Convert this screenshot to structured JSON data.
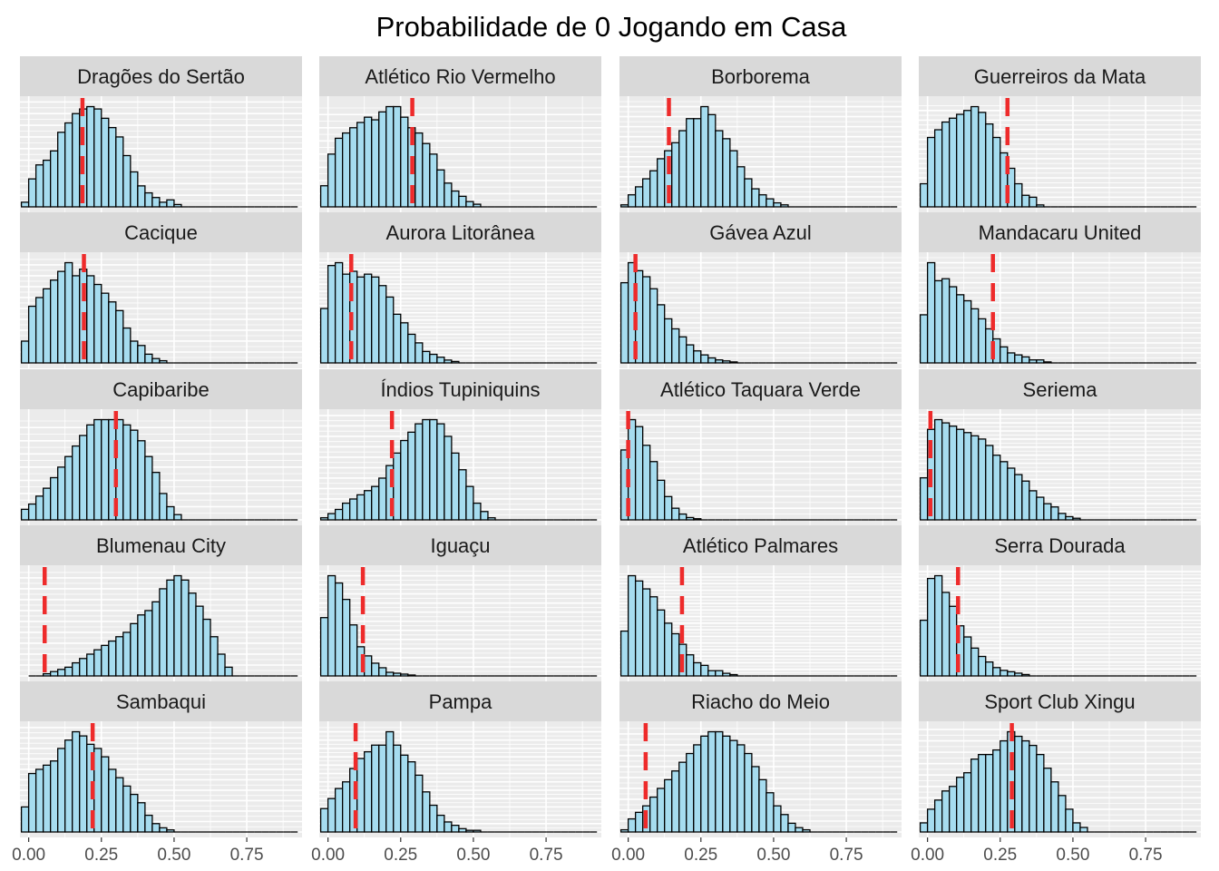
{
  "chart_data": {
    "type": "bar",
    "title": "Probabilidade de 0 Jogando em Casa",
    "xlabel": "",
    "ylabel": "",
    "xlim": [
      -0.03,
      0.94
    ],
    "x_ticks": [
      0,
      0.25,
      0.5,
      0.75
    ],
    "x_tick_labels": [
      "0.00",
      "0.25",
      "0.50",
      "0.75"
    ],
    "bin_start": -0.025,
    "bin_width": 0.025,
    "grid": true,
    "bar_fill": "#a6dcef",
    "bar_outline": "#000000",
    "reference_line_color": "#ee2b2b",
    "panel_bg": "#ebebeb",
    "strip_bg": "#d9d9d9",
    "facets": [
      {
        "name": "Dragões do Sertão",
        "ref": 0.185,
        "counts": [
          2,
          12,
          18,
          20,
          24,
          32,
          36,
          40,
          42,
          43,
          42,
          38,
          34,
          30,
          22,
          15,
          9,
          6,
          4,
          2,
          3,
          1,
          0,
          0,
          0,
          0,
          0,
          0,
          0,
          0,
          0,
          0,
          0,
          0,
          0,
          0,
          0,
          0
        ]
      },
      {
        "name": "Atlético Rio Vermelho",
        "ref": 0.29,
        "counts": [
          8,
          20,
          26,
          28,
          30,
          32,
          34,
          33,
          36,
          38,
          38,
          34,
          30,
          28,
          24,
          20,
          14,
          9,
          6,
          4,
          2,
          1,
          0,
          0,
          0,
          0,
          0,
          0,
          0,
          0,
          0,
          0,
          0,
          0,
          0,
          0,
          0,
          0
        ]
      },
      {
        "name": "Borborema",
        "ref": 0.14,
        "counts": [
          1,
          6,
          10,
          14,
          18,
          24,
          28,
          32,
          38,
          44,
          44,
          50,
          46,
          38,
          34,
          28,
          20,
          14,
          9,
          6,
          4,
          2,
          1,
          0,
          0,
          0,
          0,
          0,
          0,
          0,
          0,
          0,
          0,
          0,
          0,
          0,
          0,
          0
        ]
      },
      {
        "name": "Guerreiros da Mata",
        "ref": 0.275,
        "counts": [
          12,
          36,
          40,
          44,
          46,
          48,
          50,
          52,
          49,
          43,
          36,
          28,
          20,
          12,
          6,
          5,
          1,
          0,
          0,
          0,
          0,
          0,
          0,
          0,
          0,
          0,
          0,
          0,
          0,
          0,
          0,
          0,
          0,
          0,
          0,
          0,
          0,
          0
        ]
      },
      {
        "name": "Cacique",
        "ref": 0.19,
        "counts": [
          10,
          26,
          30,
          34,
          38,
          42,
          46,
          40,
          43,
          40,
          36,
          32,
          28,
          24,
          16,
          10,
          8,
          4,
          2,
          1,
          0,
          0,
          0,
          0,
          0,
          0,
          0,
          0,
          0,
          0,
          0,
          0,
          0,
          0,
          0,
          0,
          0,
          0
        ]
      },
      {
        "name": "Aurora Litorânea",
        "ref": 0.08,
        "counts": [
          38,
          68,
          70,
          62,
          64,
          60,
          62,
          60,
          54,
          46,
          34,
          28,
          20,
          14,
          8,
          6,
          4,
          2,
          1,
          0,
          0,
          0,
          0,
          0,
          0,
          0,
          0,
          0,
          0,
          0,
          0,
          0,
          0,
          0,
          0,
          0,
          0,
          0
        ]
      },
      {
        "name": "Gávea Azul",
        "ref": 0.025,
        "counts": [
          80,
          100,
          92,
          86,
          74,
          58,
          44,
          34,
          26,
          18,
          12,
          8,
          5,
          3,
          2,
          1,
          0,
          0,
          0,
          0,
          0,
          0,
          0,
          0,
          0,
          0,
          0,
          0,
          0,
          0,
          0,
          0,
          0,
          0,
          0,
          0,
          0,
          0
        ]
      },
      {
        "name": "Mandacaru United",
        "ref": 0.225,
        "counts": [
          48,
          100,
          82,
          84,
          76,
          68,
          62,
          54,
          44,
          34,
          24,
          16,
          10,
          8,
          6,
          3,
          3,
          1,
          0,
          0,
          0,
          0,
          0,
          0,
          0,
          0,
          0,
          0,
          0,
          0,
          0,
          0,
          0,
          0,
          0,
          0,
          0,
          0
        ]
      },
      {
        "name": "Capibaribe",
        "ref": 0.3,
        "counts": [
          4,
          6,
          9,
          12,
          16,
          20,
          24,
          28,
          32,
          36,
          38,
          38,
          38,
          38,
          36,
          34,
          30,
          24,
          18,
          10,
          5,
          2,
          0,
          0,
          0,
          0,
          0,
          0,
          0,
          0,
          0,
          0,
          0,
          0,
          0,
          0,
          0,
          0
        ]
      },
      {
        "name": "Índios Tupiniquins",
        "ref": 0.22,
        "counts": [
          1,
          3,
          5,
          8,
          10,
          12,
          14,
          16,
          20,
          26,
          32,
          38,
          42,
          46,
          48,
          48,
          46,
          40,
          32,
          24,
          16,
          8,
          4,
          1,
          0,
          0,
          0,
          0,
          0,
          0,
          0,
          0,
          0,
          0,
          0,
          0,
          0,
          0
        ]
      },
      {
        "name": "Atlético Taquara Verde",
        "ref": 0.0,
        "counts": [
          60,
          86,
          80,
          64,
          50,
          34,
          20,
          10,
          5,
          2,
          1,
          0,
          0,
          0,
          0,
          0,
          0,
          0,
          0,
          0,
          0,
          0,
          0,
          0,
          0,
          0,
          0,
          0,
          0,
          0,
          0,
          0,
          0,
          0,
          0,
          0,
          0,
          0
        ]
      },
      {
        "name": "Seriema",
        "ref": 0.01,
        "counts": [
          26,
          56,
          62,
          60,
          58,
          56,
          54,
          52,
          50,
          46,
          40,
          36,
          32,
          28,
          24,
          18,
          14,
          10,
          8,
          4,
          2,
          1,
          0,
          0,
          0,
          0,
          0,
          0,
          0,
          0,
          0,
          0,
          0,
          0,
          0,
          0,
          0,
          0
        ]
      },
      {
        "name": "Blumenau City",
        "ref": 0.055,
        "counts": [
          0,
          0,
          0,
          1,
          2,
          3,
          4,
          6,
          8,
          10,
          12,
          14,
          16,
          18,
          20,
          24,
          28,
          30,
          34,
          40,
          44,
          46,
          44,
          38,
          32,
          26,
          18,
          10,
          4,
          0,
          0,
          0,
          0,
          0,
          0,
          0,
          0,
          0
        ]
      },
      {
        "name": "Iguaçu",
        "ref": 0.12,
        "counts": [
          64,
          110,
          102,
          84,
          56,
          32,
          22,
          14,
          9,
          4,
          3,
          2,
          1,
          0,
          0,
          0,
          0,
          0,
          0,
          0,
          0,
          0,
          0,
          0,
          0,
          0,
          0,
          0,
          0,
          0,
          0,
          0,
          0,
          0,
          0,
          0,
          0,
          0
        ]
      },
      {
        "name": "Atlético Palmares",
        "ref": 0.185,
        "counts": [
          34,
          76,
          72,
          66,
          60,
          50,
          40,
          32,
          24,
          16,
          10,
          8,
          4,
          4,
          2,
          1,
          0,
          0,
          0,
          0,
          0,
          0,
          0,
          0,
          0,
          0,
          0,
          0,
          0,
          0,
          0,
          0,
          0,
          0,
          0,
          0,
          0,
          0
        ]
      },
      {
        "name": "Serra Dourada",
        "ref": 0.105,
        "counts": [
          40,
          70,
          72,
          60,
          50,
          36,
          28,
          20,
          14,
          10,
          6,
          4,
          3,
          2,
          1,
          0,
          0,
          0,
          0,
          0,
          0,
          0,
          0,
          0,
          0,
          0,
          0,
          0,
          0,
          0,
          0,
          0,
          0,
          0,
          0,
          0,
          0,
          0
        ]
      },
      {
        "name": "Sambaqui",
        "ref": 0.22,
        "counts": [
          12,
          28,
          30,
          32,
          34,
          40,
          44,
          48,
          46,
          42,
          40,
          36,
          30,
          26,
          22,
          18,
          14,
          8,
          4,
          2,
          1,
          0,
          0,
          0,
          0,
          0,
          0,
          0,
          0,
          0,
          0,
          0,
          0,
          0,
          0,
          0,
          0,
          0
        ]
      },
      {
        "name": "Pampa",
        "ref": 0.095,
        "counts": [
          14,
          20,
          26,
          30,
          38,
          44,
          48,
          52,
          52,
          60,
          52,
          46,
          42,
          34,
          24,
          16,
          10,
          6,
          4,
          2,
          1,
          1,
          0,
          0,
          0,
          0,
          0,
          0,
          0,
          0,
          0,
          0,
          0,
          0,
          0,
          0,
          0,
          0
        ]
      },
      {
        "name": "Riacho do Meio",
        "ref": 0.06,
        "counts": [
          1,
          6,
          9,
          12,
          16,
          20,
          24,
          28,
          32,
          36,
          40,
          44,
          46,
          46,
          44,
          42,
          40,
          36,
          30,
          24,
          18,
          12,
          8,
          4,
          2,
          1,
          0,
          0,
          0,
          0,
          0,
          0,
          0,
          0,
          0,
          0,
          0,
          0
        ]
      },
      {
        "name": "Sport Club Xingu",
        "ref": 0.29,
        "counts": [
          4,
          10,
          14,
          18,
          20,
          24,
          26,
          32,
          34,
          34,
          36,
          40,
          44,
          42,
          40,
          38,
          34,
          28,
          22,
          16,
          10,
          4,
          2,
          0,
          0,
          0,
          0,
          0,
          0,
          0,
          0,
          0,
          0,
          0,
          0,
          0,
          0,
          0
        ]
      }
    ]
  }
}
